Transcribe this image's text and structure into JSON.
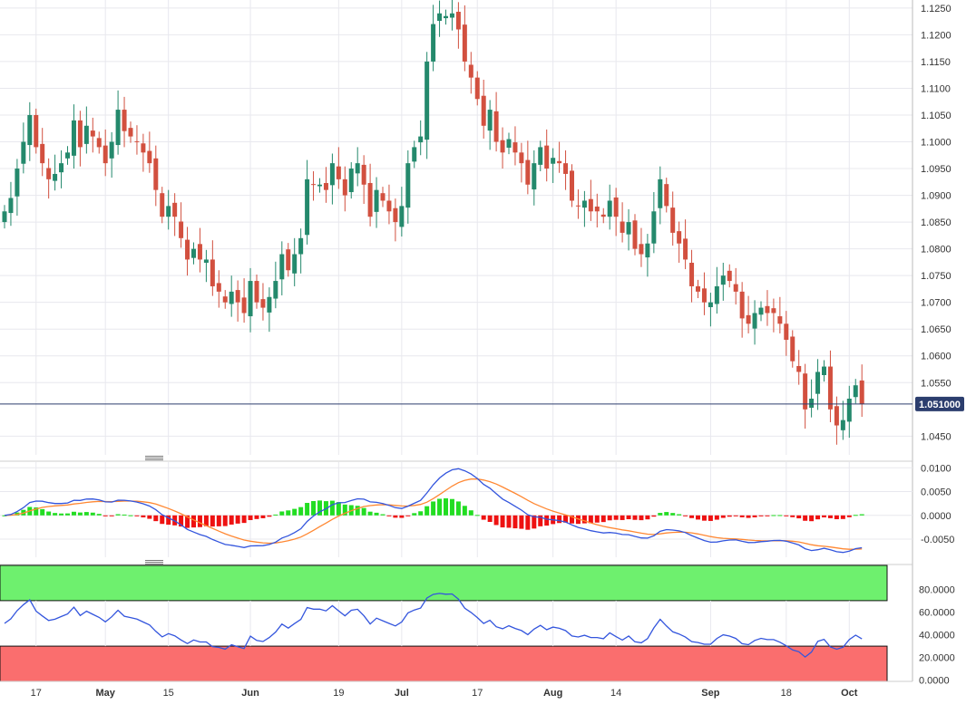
{
  "chart_data": [
    {
      "type": "candlestick",
      "pane": "price",
      "last_price_label": "1.051000",
      "last_price": 1.051,
      "ylim": [
        1.0415,
        1.1265
      ],
      "y_ticks": [
        "1.1250",
        "1.1200",
        "1.1150",
        "1.1100",
        "1.1050",
        "1.1000",
        "1.0950",
        "1.0900",
        "1.0850",
        "1.0800",
        "1.0750",
        "1.0700",
        "1.0650",
        "1.0600",
        "1.0550",
        "1.0450"
      ],
      "x_tick_labels": [
        {
          "label": "17",
          "bold": false,
          "bar": 5
        },
        {
          "label": "May",
          "bold": true,
          "bar": 16
        },
        {
          "label": "15",
          "bold": false,
          "bar": 26
        },
        {
          "label": "Jun",
          "bold": true,
          "bar": 39
        },
        {
          "label": "19",
          "bold": false,
          "bar": 53
        },
        {
          "label": "Jul",
          "bold": true,
          "bar": 63
        },
        {
          "label": "17",
          "bold": false,
          "bar": 75
        },
        {
          "label": "Aug",
          "bold": true,
          "bar": 87
        },
        {
          "label": "14",
          "bold": false,
          "bar": 97
        },
        {
          "label": "Sep",
          "bold": true,
          "bar": 112
        },
        {
          "label": "18",
          "bold": false,
          "bar": 124
        },
        {
          "label": "Oct",
          "bold": true,
          "bar": 134
        }
      ],
      "close": [
        1.087,
        1.0895,
        1.095,
        1.1,
        1.105,
        1.099,
        1.096,
        1.093,
        1.094,
        1.096,
        1.098,
        1.104,
        1.099,
        1.103,
        1.101,
        1.099,
        1.096,
        1.1,
        1.106,
        1.102,
        1.101,
        1.1,
        1.098,
        1.096,
        1.091,
        1.086,
        1.088,
        1.086,
        1.082,
        1.078,
        1.08,
        1.078,
        1.078,
        1.073,
        1.072,
        1.07,
        1.072,
        1.07,
        1.068,
        1.074,
        1.07,
        1.069,
        1.071,
        1.074,
        1.079,
        1.076,
        1.079,
        1.082,
        1.093,
        1.092,
        1.092,
        1.091,
        1.096,
        1.093,
        1.09,
        1.095,
        1.096,
        1.092,
        1.086,
        1.091,
        1.089,
        1.087,
        1.085,
        1.088,
        1.096,
        1.099,
        1.101,
        1.115,
        1.122,
        1.124,
        1.1235,
        1.124,
        1.121,
        1.115,
        1.112,
        1.108,
        1.103,
        1.106,
        1.1,
        1.098,
        1.1005,
        1.098,
        1.096,
        1.092,
        1.096,
        1.099,
        1.095,
        1.097,
        1.096,
        1.094,
        1.089,
        1.088,
        1.089,
        1.087,
        1.087,
        1.086,
        1.089,
        1.086,
        1.083,
        1.085,
        1.08,
        1.079,
        1.081,
        1.087,
        1.093,
        1.088,
        1.083,
        1.081,
        1.078,
        1.073,
        1.072,
        1.07,
        1.07,
        1.073,
        1.075,
        1.074,
        1.072,
        1.067,
        1.066,
        1.068,
        1.069,
        1.068,
        1.068,
        1.066,
        1.063,
        1.059,
        1.057,
        1.05,
        1.052,
        1.057,
        1.058,
        1.05,
        1.047,
        1.048,
        1.052,
        1.0545,
        1.051
      ],
      "indicators": "price series abbreviated; derived open/high/low from close"
    },
    {
      "type": "macd",
      "pane": "macd",
      "ylim": [
        -0.0088,
        0.0112
      ],
      "y_ticks": [
        "0.0100",
        "0.0050",
        "0.0000",
        "-0.0050"
      ],
      "series": [
        {
          "name": "macd",
          "color": "#3355dd"
        },
        {
          "name": "signal",
          "color": "#ff8833"
        },
        {
          "name": "histogram",
          "color_up": "#22dd22",
          "color_down": "#ee1111"
        }
      ]
    },
    {
      "type": "line",
      "pane": "rsi",
      "ylim": [
        -1,
        101
      ],
      "y_ticks": [
        "80.0000",
        "60.0000",
        "40.0000",
        "20.0000",
        "0.0000"
      ],
      "overbought": 70,
      "oversold": 30,
      "series": [
        {
          "name": "rsi",
          "color": "#3355dd"
        }
      ]
    }
  ],
  "colors": {
    "bull": "#24896c",
    "bear": "#d2503f",
    "price_line": "#2c3e6e",
    "label_bg": "#2c3e6e",
    "grid": "#e8e8ee",
    "overbought_zone": "#6ef06e",
    "oversold_zone": "#fa6e6e"
  },
  "icons": [
    "pane-resize-handle-icon",
    "pane-resize-handle-icon"
  ]
}
